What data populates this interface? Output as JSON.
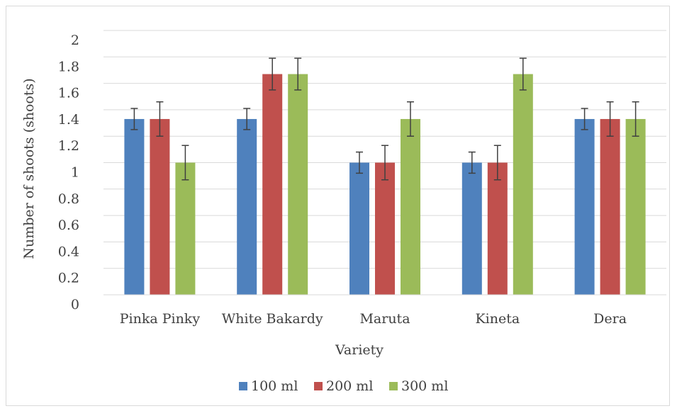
{
  "chart_data": {
    "type": "bar",
    "title": "",
    "xlabel": "Variety",
    "ylabel": "Number of shoots (shoots)",
    "ylim": [
      0,
      2
    ],
    "yticks": [
      "0",
      "0.2",
      "0.4",
      "0.6",
      "0.8",
      "1",
      "1.2",
      "1.4",
      "1.6",
      "1.8",
      "2"
    ],
    "categories": [
      "Pinka Pinky",
      "White Bakardy",
      "Maruta",
      "Kineta",
      "Dera"
    ],
    "series": [
      {
        "name": "100 ml",
        "color": "#4f81bd",
        "values": [
          1.33,
          1.33,
          1.0,
          1.0,
          1.33
        ],
        "error": [
          0.08,
          0.08,
          0.08,
          0.08,
          0.08
        ]
      },
      {
        "name": "200 ml",
        "color": "#c0504d",
        "values": [
          1.33,
          1.67,
          1.0,
          1.0,
          1.33
        ],
        "error": [
          0.13,
          0.12,
          0.13,
          0.13,
          0.13
        ]
      },
      {
        "name": "300 ml",
        "color": "#9bbb59",
        "values": [
          1.0,
          1.67,
          1.33,
          1.67,
          1.33
        ],
        "error": [
          0.13,
          0.12,
          0.13,
          0.12,
          0.13
        ]
      }
    ],
    "grid": true,
    "legend_position": "bottom"
  }
}
